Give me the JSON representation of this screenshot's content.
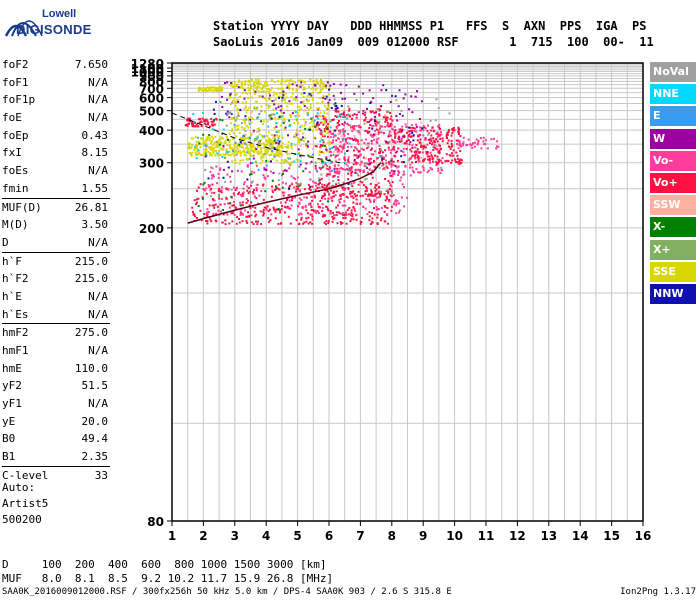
{
  "logo": {
    "line1": "Lowell",
    "line2": "DIGISONDE"
  },
  "header": {
    "line1": "Station YYYY DAY   DDD HHMMSS P1   FFS  S  AXN  PPS  IGA  PS",
    "line2": "SaoLuis 2016 Jan09  009 012000 RSF       1  715  100  00-  11"
  },
  "params": {
    "group1": [
      {
        "name": "foF2",
        "value": "7.650"
      },
      {
        "name": "foF1",
        "value": "N/A"
      },
      {
        "name": "foF1p",
        "value": "N/A"
      },
      {
        "name": "foE",
        "value": "N/A"
      },
      {
        "name": "foEp",
        "value": "0.43"
      },
      {
        "name": "fxI",
        "value": "8.15"
      },
      {
        "name": "foEs",
        "value": "N/A"
      },
      {
        "name": "fmin",
        "value": "1.55"
      }
    ],
    "group2": [
      {
        "name": "MUF(D)",
        "value": "26.81"
      },
      {
        "name": "M(D)",
        "value": "3.50"
      },
      {
        "name": "D",
        "value": "N/A"
      }
    ],
    "group3": [
      {
        "name": "h`F",
        "value": "215.0"
      },
      {
        "name": "h`F2",
        "value": "215.0"
      },
      {
        "name": "h`E",
        "value": "N/A"
      },
      {
        "name": "h`Es",
        "value": "N/A"
      }
    ],
    "group4": [
      {
        "name": "hmF2",
        "value": "275.0"
      },
      {
        "name": "hmF1",
        "value": "N/A"
      },
      {
        "name": "hmE",
        "value": "110.0"
      },
      {
        "name": "yF2",
        "value": "51.5"
      },
      {
        "name": "yF1",
        "value": "N/A"
      },
      {
        "name": "yE",
        "value": "20.0"
      },
      {
        "name": "B0",
        "value": "49.4"
      },
      {
        "name": "B1",
        "value": "2.35"
      }
    ],
    "group5": [
      {
        "name": "C-level",
        "value": "33"
      }
    ]
  },
  "auto": {
    "line1": "Auto:",
    "line2": "Artist5",
    "line3": "500200"
  },
  "footer": {
    "d_label": "D",
    "d_values": "100  200  400  600  800 1000 1500 3000 [km]",
    "muf_label": "MUF",
    "muf_values": "8.0  8.1  8.5  9.2 10.2 11.7 15.9 26.8 [MHz]",
    "info": "SAA0K_2016009012000.RSF / 300fx256h 50 kHz 5.0 km / DPS-4 SAA0K 903 / 2.6 S 315.8 E",
    "version": "Ion2Png 1.3.17"
  },
  "legend": [
    {
      "label": "NoVal",
      "color": "#a0a0a0"
    },
    {
      "label": "NNE",
      "color": "#00d8ff"
    },
    {
      "label": "E",
      "color": "#3a9cf0"
    },
    {
      "label": "W",
      "color": "#9c00a0"
    },
    {
      "label": "Vo-",
      "color": "#ff3c9c"
    },
    {
      "label": "Vo+",
      "color": "#ff1040"
    },
    {
      "label": "SSW",
      "color": "#ffb0a0"
    },
    {
      "label": "X-",
      "color": "#008000"
    },
    {
      "label": "X+",
      "color": "#80b060"
    },
    {
      "label": "SSE",
      "color": "#d8d800"
    },
    {
      "label": "NNW",
      "color": "#1010b0"
    }
  ],
  "chart_data": {
    "type": "scatter",
    "xlim": [
      1,
      16
    ],
    "ylim": [
      80,
      1280
    ],
    "y_scale": "reciprocal",
    "x_ticks": [
      1,
      2,
      3,
      4,
      5,
      6,
      7,
      8,
      9,
      10,
      11,
      12,
      13,
      14,
      15,
      16
    ],
    "y_ticks": [
      80,
      200,
      300,
      400,
      500,
      600,
      700,
      800,
      900,
      1000,
      1100,
      1280
    ],
    "grid": true,
    "clusters": [
      {
        "label": "Vo+",
        "xmin": 1.6,
        "xmax": 8.0,
        "ymin": 205,
        "ymax": 260,
        "n": 380
      },
      {
        "label": "Vo-",
        "xmin": 2.0,
        "xmax": 8.6,
        "ymin": 215,
        "ymax": 300,
        "n": 260
      },
      {
        "label": "Vo+",
        "xmin": 5.5,
        "xmax": 8.0,
        "ymin": 240,
        "ymax": 520,
        "n": 320
      },
      {
        "label": "Vo-",
        "xmin": 6.0,
        "xmax": 9.6,
        "ymin": 280,
        "ymax": 430,
        "n": 260
      },
      {
        "label": "Vo+",
        "xmin": 8.0,
        "xmax": 10.2,
        "ymin": 300,
        "ymax": 420,
        "n": 200
      },
      {
        "label": "Vo-",
        "xmin": 10.0,
        "xmax": 11.4,
        "ymin": 340,
        "ymax": 375,
        "n": 40
      },
      {
        "label": "SSE",
        "xmin": 2.8,
        "xmax": 6.0,
        "ymin": 300,
        "ymax": 850,
        "n": 520
      },
      {
        "label": "SSE",
        "xmin": 1.5,
        "xmax": 4.5,
        "ymin": 320,
        "ymax": 380,
        "n": 300
      },
      {
        "label": "SSE",
        "xmin": 1.8,
        "xmax": 2.6,
        "ymin": 680,
        "ymax": 730,
        "n": 60
      },
      {
        "label": "Vo+",
        "xmin": 1.4,
        "xmax": 2.4,
        "ymin": 420,
        "ymax": 460,
        "n": 60
      },
      {
        "label": "W",
        "xmin": 2.5,
        "xmax": 9.0,
        "ymin": 280,
        "ymax": 800,
        "n": 160
      },
      {
        "label": "NNE",
        "xmin": 1.6,
        "xmax": 7.0,
        "ymin": 300,
        "ymax": 500,
        "n": 50
      },
      {
        "label": "X-",
        "xmin": 1.8,
        "xmax": 6.0,
        "ymin": 220,
        "ymax": 480,
        "n": 50
      },
      {
        "label": "X+",
        "xmin": 2.0,
        "xmax": 8.0,
        "ymin": 240,
        "ymax": 600,
        "n": 70
      },
      {
        "label": "SSW",
        "xmin": 3.0,
        "xmax": 9.0,
        "ymin": 300,
        "ymax": 520,
        "n": 50
      },
      {
        "label": "NNW",
        "xmin": 2.0,
        "xmax": 9.0,
        "ymin": 250,
        "ymax": 700,
        "n": 50
      },
      {
        "label": "E",
        "xmin": 2.0,
        "xmax": 7.0,
        "ymin": 280,
        "ymax": 500,
        "n": 40
      },
      {
        "label": "NoVal",
        "xmin": 2.0,
        "xmax": 10.0,
        "ymin": 250,
        "ymax": 600,
        "n": 40
      }
    ],
    "trace": {
      "f": [
        1.5,
        2.0,
        3.0,
        4.0,
        5.0,
        6.0,
        6.5,
        7.0,
        7.4,
        7.65
      ],
      "h": [
        205,
        210,
        220,
        230,
        240,
        250,
        258,
        268,
        280,
        300
      ]
    },
    "dashed_trace": {
      "f": [
        1.0,
        2.0,
        3.0,
        4.0,
        5.0,
        6.0,
        6.5
      ],
      "h": [
        485,
        420,
        370,
        340,
        320,
        305,
        298
      ]
    }
  }
}
